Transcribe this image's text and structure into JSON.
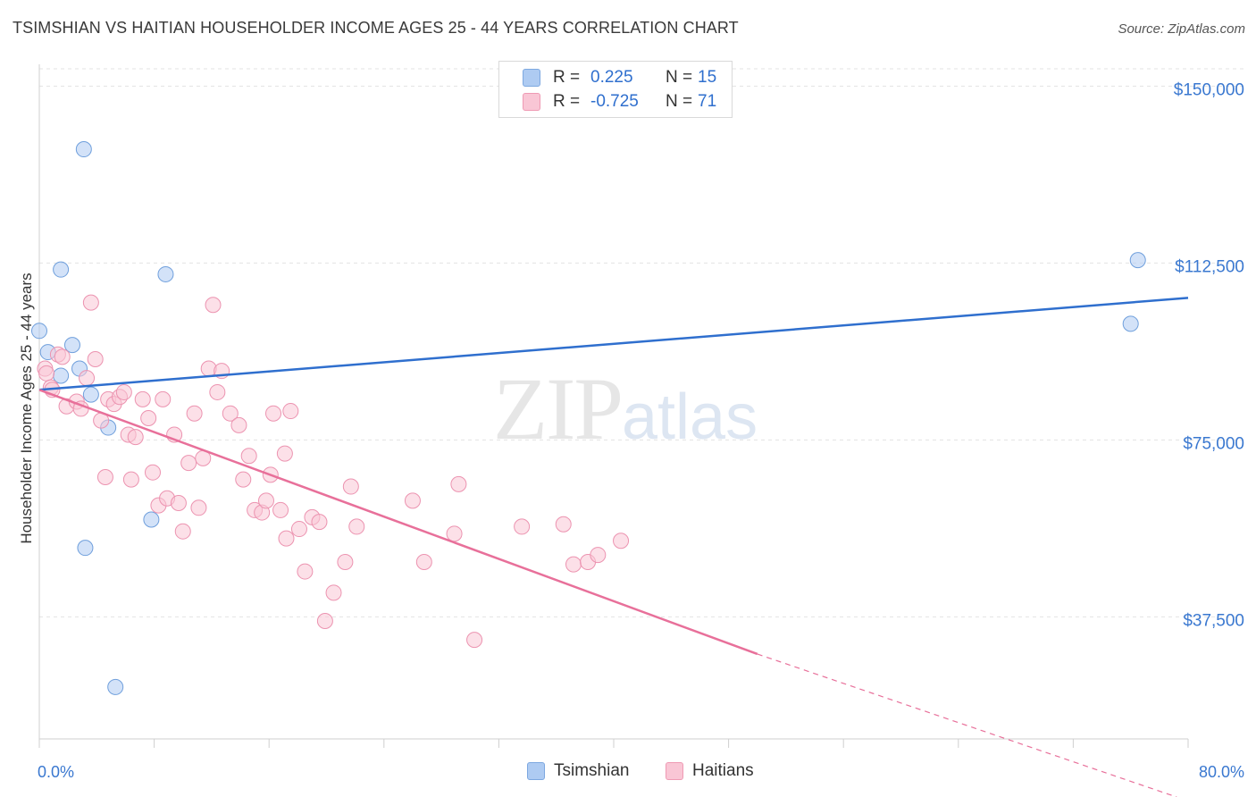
{
  "header": {
    "title": "TSIMSHIAN VS HAITIAN HOUSEHOLDER INCOME AGES 25 - 44 YEARS CORRELATION CHART",
    "source": "Source: ZipAtlas.com"
  },
  "watermark": {
    "zip": "ZIP",
    "atlas": "atlas"
  },
  "legend": {
    "rows": [
      {
        "r_label": "R =",
        "r_value": "0.225",
        "n_label": "N =",
        "n_value": "15",
        "color": "#aecbf2",
        "border": "#7da8e0"
      },
      {
        "r_label": "R =",
        "r_value": "-0.725",
        "n_label": "N =",
        "n_value": "71",
        "color": "#f9c6d5",
        "border": "#ef9ab4"
      }
    ]
  },
  "bottom_legend": {
    "items": [
      {
        "label": "Tsimshian",
        "color": "#aecbf2",
        "border": "#7da8e0"
      },
      {
        "label": "Haitians",
        "color": "#f9c6d5",
        "border": "#ef9ab4"
      }
    ]
  },
  "chart_data": {
    "type": "scatter",
    "title": "TSIMSHIAN VS HAITIAN HOUSEHOLDER INCOME AGES 25 - 44 YEARS CORRELATION CHART",
    "xlabel": "",
    "ylabel": "Householder Income Ages 25 - 44 years",
    "xlim": [
      0,
      80
    ],
    "ylim": [
      12000,
      155000
    ],
    "x_tick_labels": [
      "0.0%",
      "80.0%"
    ],
    "y_ticks": [
      37500,
      75000,
      112500,
      150000
    ],
    "y_tick_labels": [
      "$37,500",
      "$75,000",
      "$112,500",
      "$150,000"
    ],
    "grid": true,
    "colors": {
      "tsimshian": "#2f6fce",
      "haitians": "#e8709a",
      "axis_text": "#3a78d0"
    },
    "series": [
      {
        "name": "Tsimshian",
        "points": [
          [
            0.0,
            98500
          ],
          [
            0.6,
            94000
          ],
          [
            1.5,
            111500
          ],
          [
            2.3,
            95500
          ],
          [
            1.5,
            89000
          ],
          [
            2.8,
            90500
          ],
          [
            3.1,
            137000
          ],
          [
            3.6,
            85000
          ],
          [
            4.8,
            78000
          ],
          [
            3.2,
            52500
          ],
          [
            8.8,
            110500
          ],
          [
            7.8,
            58500
          ],
          [
            5.3,
            23000
          ],
          [
            76.5,
            113500
          ],
          [
            76.0,
            100000
          ]
        ],
        "trend": {
          "x0": 0,
          "y0": 86000,
          "x1": 80,
          "y1": 105500
        }
      },
      {
        "name": "Haitians",
        "points": [
          [
            0.4,
            90500
          ],
          [
            0.5,
            89500
          ],
          [
            0.8,
            86500
          ],
          [
            1.3,
            93500
          ],
          [
            1.6,
            93000
          ],
          [
            1.9,
            82500
          ],
          [
            2.6,
            83500
          ],
          [
            2.9,
            82000
          ],
          [
            3.3,
            88500
          ],
          [
            3.6,
            104500
          ],
          [
            3.9,
            92500
          ],
          [
            4.3,
            79500
          ],
          [
            4.6,
            67500
          ],
          [
            4.8,
            84000
          ],
          [
            5.2,
            83000
          ],
          [
            5.6,
            84500
          ],
          [
            5.9,
            85500
          ],
          [
            6.2,
            76500
          ],
          [
            6.4,
            67000
          ],
          [
            6.7,
            76000
          ],
          [
            7.2,
            84000
          ],
          [
            7.6,
            80000
          ],
          [
            7.9,
            68500
          ],
          [
            8.3,
            61500
          ],
          [
            8.6,
            84000
          ],
          [
            8.9,
            63000
          ],
          [
            9.4,
            76500
          ],
          [
            9.7,
            62000
          ],
          [
            10.0,
            56000
          ],
          [
            10.4,
            70500
          ],
          [
            10.8,
            81000
          ],
          [
            11.1,
            61000
          ],
          [
            11.4,
            71500
          ],
          [
            11.8,
            90500
          ],
          [
            12.1,
            104000
          ],
          [
            12.4,
            85500
          ],
          [
            12.7,
            90000
          ],
          [
            13.3,
            81000
          ],
          [
            13.9,
            78500
          ],
          [
            14.2,
            67000
          ],
          [
            14.6,
            72000
          ],
          [
            15.0,
            60500
          ],
          [
            15.5,
            60000
          ],
          [
            15.8,
            62500
          ],
          [
            16.1,
            68000
          ],
          [
            16.3,
            81000
          ],
          [
            16.8,
            60500
          ],
          [
            17.1,
            72500
          ],
          [
            17.5,
            81500
          ],
          [
            17.2,
            54500
          ],
          [
            18.1,
            56500
          ],
          [
            18.5,
            47500
          ],
          [
            19.0,
            59000
          ],
          [
            19.5,
            58000
          ],
          [
            19.9,
            37000
          ],
          [
            20.5,
            43000
          ],
          [
            21.3,
            49500
          ],
          [
            21.7,
            65500
          ],
          [
            22.1,
            57000
          ],
          [
            26.0,
            62500
          ],
          [
            26.8,
            49500
          ],
          [
            28.9,
            55500
          ],
          [
            29.2,
            66000
          ],
          [
            30.3,
            33000
          ],
          [
            33.6,
            57000
          ],
          [
            36.5,
            57500
          ],
          [
            37.2,
            49000
          ],
          [
            38.2,
            49500
          ],
          [
            38.9,
            51000
          ],
          [
            40.5,
            54000
          ],
          [
            0.9,
            86000
          ]
        ],
        "trend": {
          "x0": 0,
          "y0": 86000,
          "x1": 50,
          "y1": 30000
        },
        "trend_dashed": {
          "x0": 50,
          "y0": 30000,
          "x1": 80,
          "y1": -4000
        }
      }
    ]
  }
}
